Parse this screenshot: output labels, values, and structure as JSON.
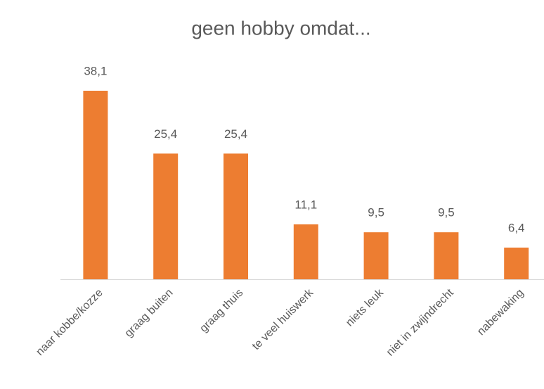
{
  "chart_data": {
    "type": "bar",
    "title": "geen hobby omdat...",
    "categories": [
      "naar kobbe/kozze",
      "graag buiten",
      "graag thuis",
      "te veel huiswerk",
      "niets leuk",
      "niet in zwijndrecht",
      "nabewaking"
    ],
    "values": [
      38.1,
      25.4,
      25.4,
      11.1,
      9.5,
      9.5,
      6.4
    ],
    "value_labels": [
      "38,1",
      "25,4",
      "25,4",
      "11,1",
      "9,5",
      "9,5",
      "6,4"
    ],
    "color": "#ed7d31"
  }
}
